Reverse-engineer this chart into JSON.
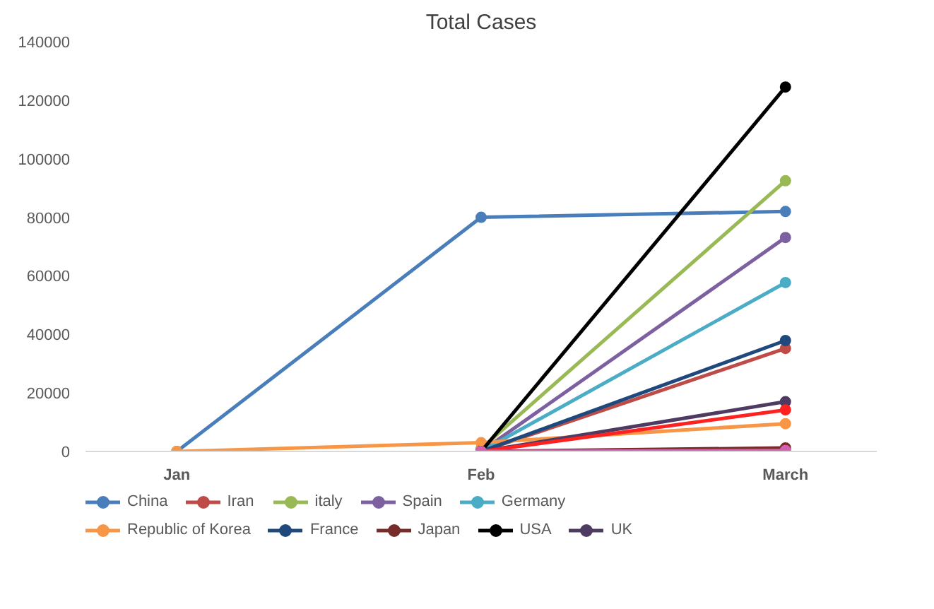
{
  "chart_data": {
    "type": "line",
    "title": "Total Cases",
    "categories": [
      "Jan",
      "Feb",
      "March"
    ],
    "ylim": [
      0,
      140000
    ],
    "yticks": [
      0,
      20000,
      40000,
      60000,
      80000,
      100000,
      120000,
      140000
    ],
    "grid": false,
    "legend": "bottom",
    "marker": "circle",
    "line_style": "solid",
    "series": [
      {
        "name": "China",
        "color": "#4a7ebb",
        "values": [
          0,
          80000,
          82000
        ]
      },
      {
        "name": "Iran",
        "color": "#be4b48",
        "values": [
          null,
          0,
          35200
        ]
      },
      {
        "name": "italy",
        "color": "#98b954",
        "values": [
          null,
          1000,
          92500
        ]
      },
      {
        "name": "Spain",
        "color": "#7d60a0",
        "values": [
          null,
          0,
          73100
        ]
      },
      {
        "name": "Germany",
        "color": "#4bacc6",
        "values": [
          null,
          0,
          57700
        ]
      },
      {
        "name": "Republic of Korea",
        "color": "#f79646",
        "values": [
          0,
          3000,
          9500
        ]
      },
      {
        "name": "France",
        "color": "#1f497d",
        "values": [
          null,
          0,
          37900
        ]
      },
      {
        "name": "Japan",
        "color": "#772c2a",
        "values": [
          null,
          0,
          1200
        ]
      },
      {
        "name": "USA",
        "color": "#000000",
        "values": [
          null,
          0,
          124500
        ]
      },
      {
        "name": "UK",
        "color": "#4d3b62",
        "values": [
          null,
          0,
          17000
        ]
      },
      {
        "color": "#ff2020",
        "values": [
          null,
          0,
          14200
        ]
      },
      {
        "color": "#d55fb0",
        "values": [
          null,
          0,
          300
        ]
      }
    ]
  }
}
